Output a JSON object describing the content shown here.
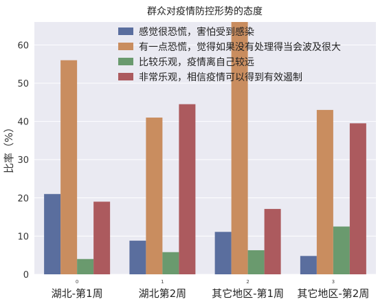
{
  "chart_data": {
    "type": "bar",
    "title": "群众对疫情防控形势的态度",
    "ylabel": "比率（%）",
    "xlabel": "",
    "ylim": [
      0,
      66
    ],
    "yticks": [
      0,
      10,
      20,
      30,
      40,
      50,
      60
    ],
    "grid": true,
    "legend_position": "top-right",
    "categories": [
      "湖北-第1周",
      "湖北第2周",
      "其它地区-第1周",
      "其它地区-第2周"
    ],
    "category_index_labels": [
      "0",
      "1",
      "2",
      "3"
    ],
    "series": [
      {
        "name": "感觉很恐慌，害怕受到感染",
        "color": "#5a6e9e",
        "values": [
          21.0,
          8.8,
          11.1,
          4.8
        ]
      },
      {
        "name": "有一点恐慌，觉得如果没有处理得当会波及很大",
        "color": "#c98d5f",
        "values": [
          56.0,
          41.0,
          66.5,
          43.0
        ]
      },
      {
        "name": "比较乐观，疫情离自己较远",
        "color": "#6a9a6e",
        "values": [
          4.0,
          5.8,
          6.3,
          12.5
        ]
      },
      {
        "name": "非常乐观，相信疫情可以得到有效遏制",
        "color": "#ac5a5e",
        "values": [
          19.0,
          44.5,
          17.1,
          39.5
        ]
      }
    ]
  }
}
